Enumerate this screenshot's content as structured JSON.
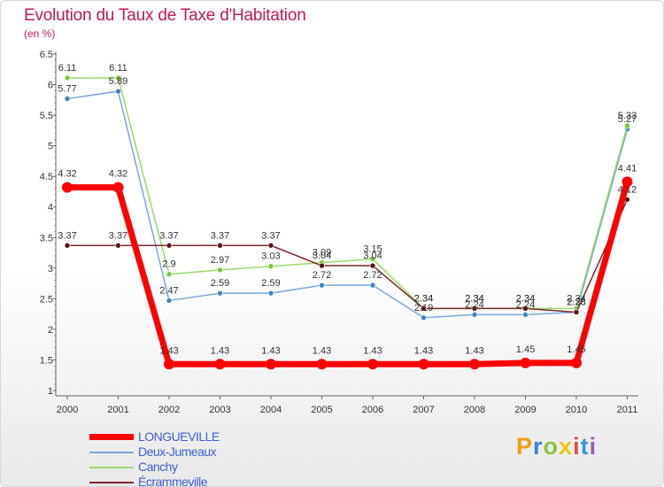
{
  "title": "Evolution du Taux de Taxe d'Habitation",
  "unit": "(en %)",
  "brand": {
    "letters": [
      "P",
      "r",
      "o",
      "x",
      "i",
      "t",
      "i"
    ],
    "colors": [
      "#f39c12",
      "#2e86de",
      "#8bc34a",
      "#f1c40f",
      "#e74c3c",
      "#3498db",
      "#9b59b6"
    ]
  },
  "chart_data": {
    "type": "line",
    "title": "Evolution du Taux de Taxe d'Habitation",
    "ylabel": "(en %)",
    "x": [
      "2000",
      "2001",
      "2002",
      "2003",
      "2004",
      "2005",
      "2006",
      "2007",
      "2008",
      "2009",
      "2010",
      "2011"
    ],
    "ylim": [
      1,
      6.5
    ],
    "yticks": [
      "1",
      "1.5",
      "2",
      "2.5",
      "3",
      "3.5",
      "4",
      "4.5",
      "5",
      "5.5",
      "6",
      "6.5"
    ],
    "grid": false,
    "legend_position": "bottom-left",
    "series": [
      {
        "name": "LONGUEVILLE",
        "color": "#ff0000",
        "markerColor": "#ff0000",
        "width": 7,
        "radius": 6,
        "values": [
          4.32,
          4.32,
          1.43,
          1.43,
          1.43,
          1.43,
          1.43,
          1.43,
          1.43,
          1.45,
          1.45,
          4.41
        ],
        "labels": [
          "4.32",
          "4.32",
          "1.43",
          "1.43",
          "1.43",
          "1.43",
          "1.43",
          "1.43",
          "1.43",
          "1.45",
          "1.45",
          "4.41"
        ]
      },
      {
        "name": "Deux-Jumeaux",
        "color": "#7aa7d9",
        "markerColor": "#3f84c6",
        "width": 1.5,
        "radius": 3,
        "values": [
          5.77,
          5.89,
          2.47,
          2.59,
          2.59,
          2.72,
          2.72,
          2.19,
          2.24,
          2.24,
          2.28,
          5.27
        ],
        "labels": [
          "5.77",
          "5.89",
          "2.47",
          "2.59",
          "2.59",
          "2.72",
          "2.72",
          "2.19",
          "2.24",
          "2.24",
          "2.28",
          "5.27"
        ]
      },
      {
        "name": "Canchy",
        "color": "#9ad86a",
        "markerColor": "#79c93e",
        "width": 1.5,
        "radius": 3,
        "values": [
          6.11,
          6.11,
          2.9,
          2.97,
          3.03,
          3.09,
          3.15,
          2.34,
          2.34,
          2.34,
          2.34,
          5.33
        ],
        "labels": [
          "6.11",
          "6.11",
          "2.9",
          "2.97",
          "3.03",
          "3.09",
          "3.15",
          "2.34",
          "2.34",
          "2.34",
          "2.34",
          "5.33"
        ]
      },
      {
        "name": "Écrammeville",
        "color": "#7a2a2a",
        "markerColor": "#5a1515",
        "width": 1.5,
        "radius": 3,
        "values": [
          3.37,
          3.37,
          3.37,
          3.37,
          3.37,
          3.04,
          3.04,
          2.34,
          2.34,
          2.34,
          2.28,
          4.12
        ],
        "labels": [
          "3.37",
          "3.37",
          "3.37",
          "3.37",
          "3.37",
          "3.04",
          "3.04",
          "2.34",
          "2.34",
          "2.34",
          "2.28",
          "4.12"
        ]
      }
    ]
  }
}
